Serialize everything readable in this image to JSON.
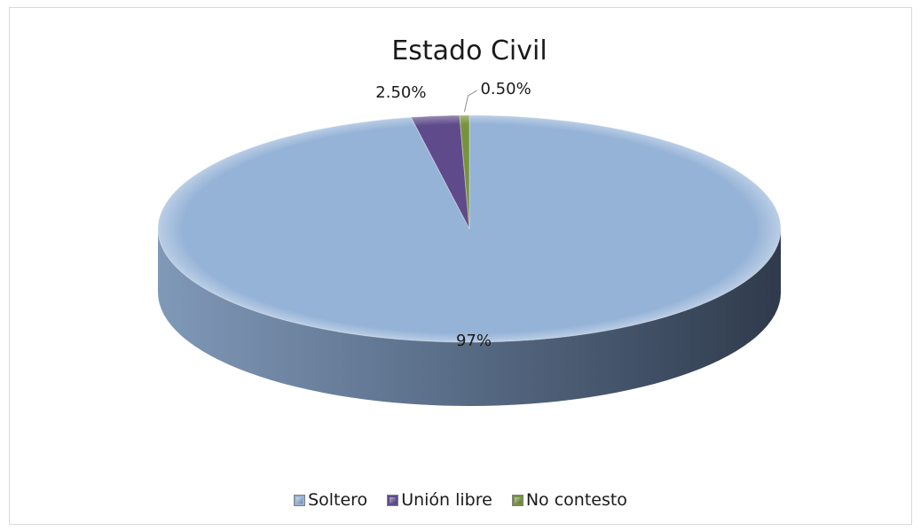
{
  "chart_data": {
    "type": "pie",
    "title": "Estado Civil",
    "categories": [
      "Soltero",
      "Unión libre",
      "No contesto"
    ],
    "values": [
      97,
      2.5,
      0.5
    ],
    "labels": [
      "97%",
      "2.50%",
      "0.50%"
    ],
    "colors": [
      "#95b3d7",
      "#5f4b8b",
      "#77933c"
    ],
    "legend": "bottom"
  }
}
